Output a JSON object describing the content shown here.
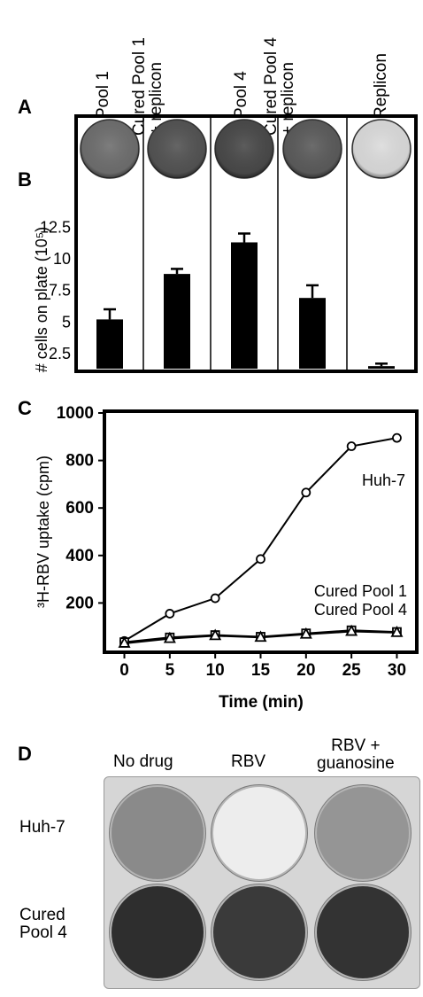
{
  "panels": {
    "a": "A",
    "b": "B",
    "c": "C",
    "d": "D"
  },
  "panel_a": {
    "columns": [
      {
        "line1": "Pool 1",
        "line2": ""
      },
      {
        "line1": "Cured Pool 1",
        "line2": "+ replicon"
      },
      {
        "line1": "Pool 4",
        "line2": ""
      },
      {
        "line1": "Cured Pool 4",
        "line2": "+ replicon"
      },
      {
        "line1": "Replicon",
        "line2": ""
      }
    ],
    "plate_colors": [
      "#6f6f6f",
      "#545454",
      "#4a4a4a",
      "#5c5c5c",
      "#dcdcdc"
    ]
  },
  "chart_data": [
    {
      "type": "bar",
      "panel": "B",
      "categories": [
        "Pool 1",
        "Cured Pool 1 + replicon",
        "Pool 4",
        "Cured Pool 4 + replicon",
        "Replicon"
      ],
      "values": [
        5.2,
        8.8,
        11.3,
        6.9,
        1.5
      ],
      "errors": [
        0.8,
        0.4,
        0.7,
        1.0,
        0.2
      ],
      "ylabel": "# cells on plate (10⁵)",
      "yticks": [
        "2.5",
        "5",
        "7.5",
        "10",
        "12.5"
      ],
      "ylim": [
        1.3,
        14.0
      ],
      "grid": false
    },
    {
      "type": "line",
      "panel": "C",
      "x": [
        0,
        5,
        10,
        15,
        20,
        25,
        30
      ],
      "series": [
        {
          "name": "Huh-7",
          "values": [
            40,
            155,
            220,
            385,
            665,
            860,
            895
          ],
          "marker": "circle"
        },
        {
          "name": "Cured Pool 1",
          "values": [
            35,
            55,
            65,
            58,
            72,
            85,
            78
          ],
          "marker": "square"
        },
        {
          "name": "Cured Pool 4",
          "values": [
            30,
            50,
            62,
            55,
            68,
            80,
            75
          ],
          "marker": "triangle"
        }
      ],
      "xlabel": "Time (min)",
      "ylabel": "³H-RBV uptake (cpm)",
      "xticks": [
        "0",
        "5",
        "10",
        "15",
        "20",
        "25",
        "30"
      ],
      "yticks": [
        "200",
        "400",
        "600",
        "800",
        "1000"
      ],
      "xlim": [
        -2,
        32
      ],
      "ylim": [
        0,
        1000
      ],
      "grid": false
    }
  ],
  "panel_d": {
    "col_labels": [
      {
        "line1": "No drug",
        "line2": ""
      },
      {
        "line1": "RBV",
        "line2": ""
      },
      {
        "line1": "RBV +",
        "line2": "guanosine"
      }
    ],
    "row_labels": [
      {
        "line1": "Huh-7",
        "line2": ""
      },
      {
        "line1": "Cured",
        "line2": "Pool 4"
      }
    ],
    "plate_colors": [
      [
        "#8a8a8a",
        "#ededed",
        "#959595"
      ],
      [
        "#2e2e2e",
        "#3a3a3a",
        "#333333"
      ]
    ]
  }
}
